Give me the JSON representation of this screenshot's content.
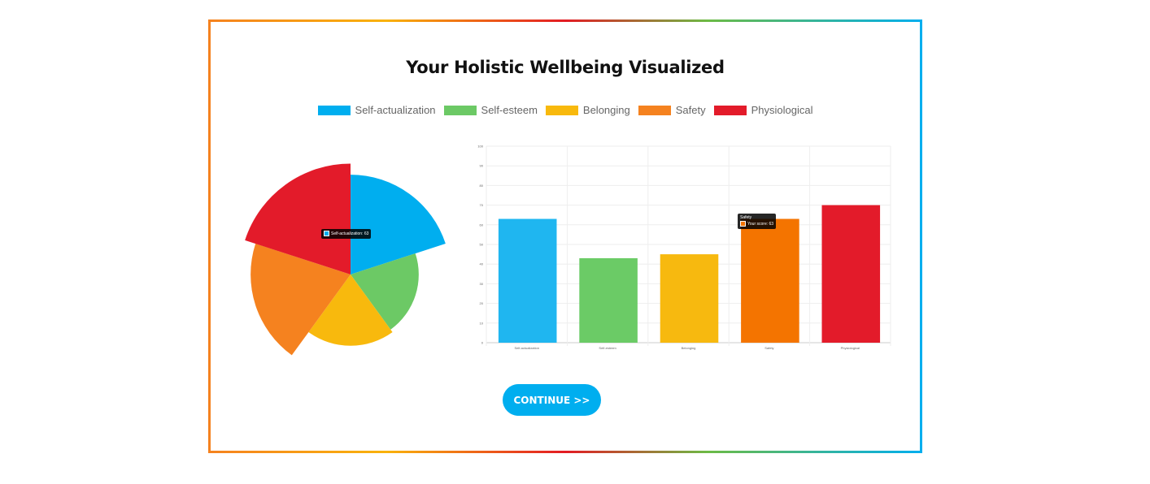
{
  "title": "Your Holistic Wellbeing Visualized",
  "continue_label": "CONTINUE >>",
  "colors": {
    "accent": "#00aeef"
  },
  "chart_data": [
    {
      "type": "polarArea",
      "categories": [
        "Self-actualization",
        "Self-esteem",
        "Belonging",
        "Safety",
        "Physiological"
      ],
      "values": [
        63,
        43,
        45,
        63,
        70
      ],
      "colors": [
        "#00aeef",
        "#6cc965",
        "#f8b90d",
        "#f5821f",
        "#e31b2a"
      ],
      "legend": "top",
      "tooltip": {
        "label": "Self-actualization: 63"
      }
    },
    {
      "type": "bar",
      "categories": [
        "Self-actualization",
        "Self-esteem",
        "Belonging",
        "Safety",
        "Physiological"
      ],
      "values": [
        63,
        43,
        45,
        63,
        70
      ],
      "colors": [
        "#1fb6f0",
        "#6bcb66",
        "#f7b90f",
        "#f47400",
        "#e31b2a"
      ],
      "ylim": [
        0,
        100
      ],
      "yticks": [
        "0",
        "10",
        "20",
        "30",
        "40",
        "50",
        "60",
        "70",
        "80",
        "90",
        "100"
      ],
      "grid": true,
      "tooltip": {
        "title": "Safety",
        "label": "Your score: 63"
      }
    }
  ]
}
